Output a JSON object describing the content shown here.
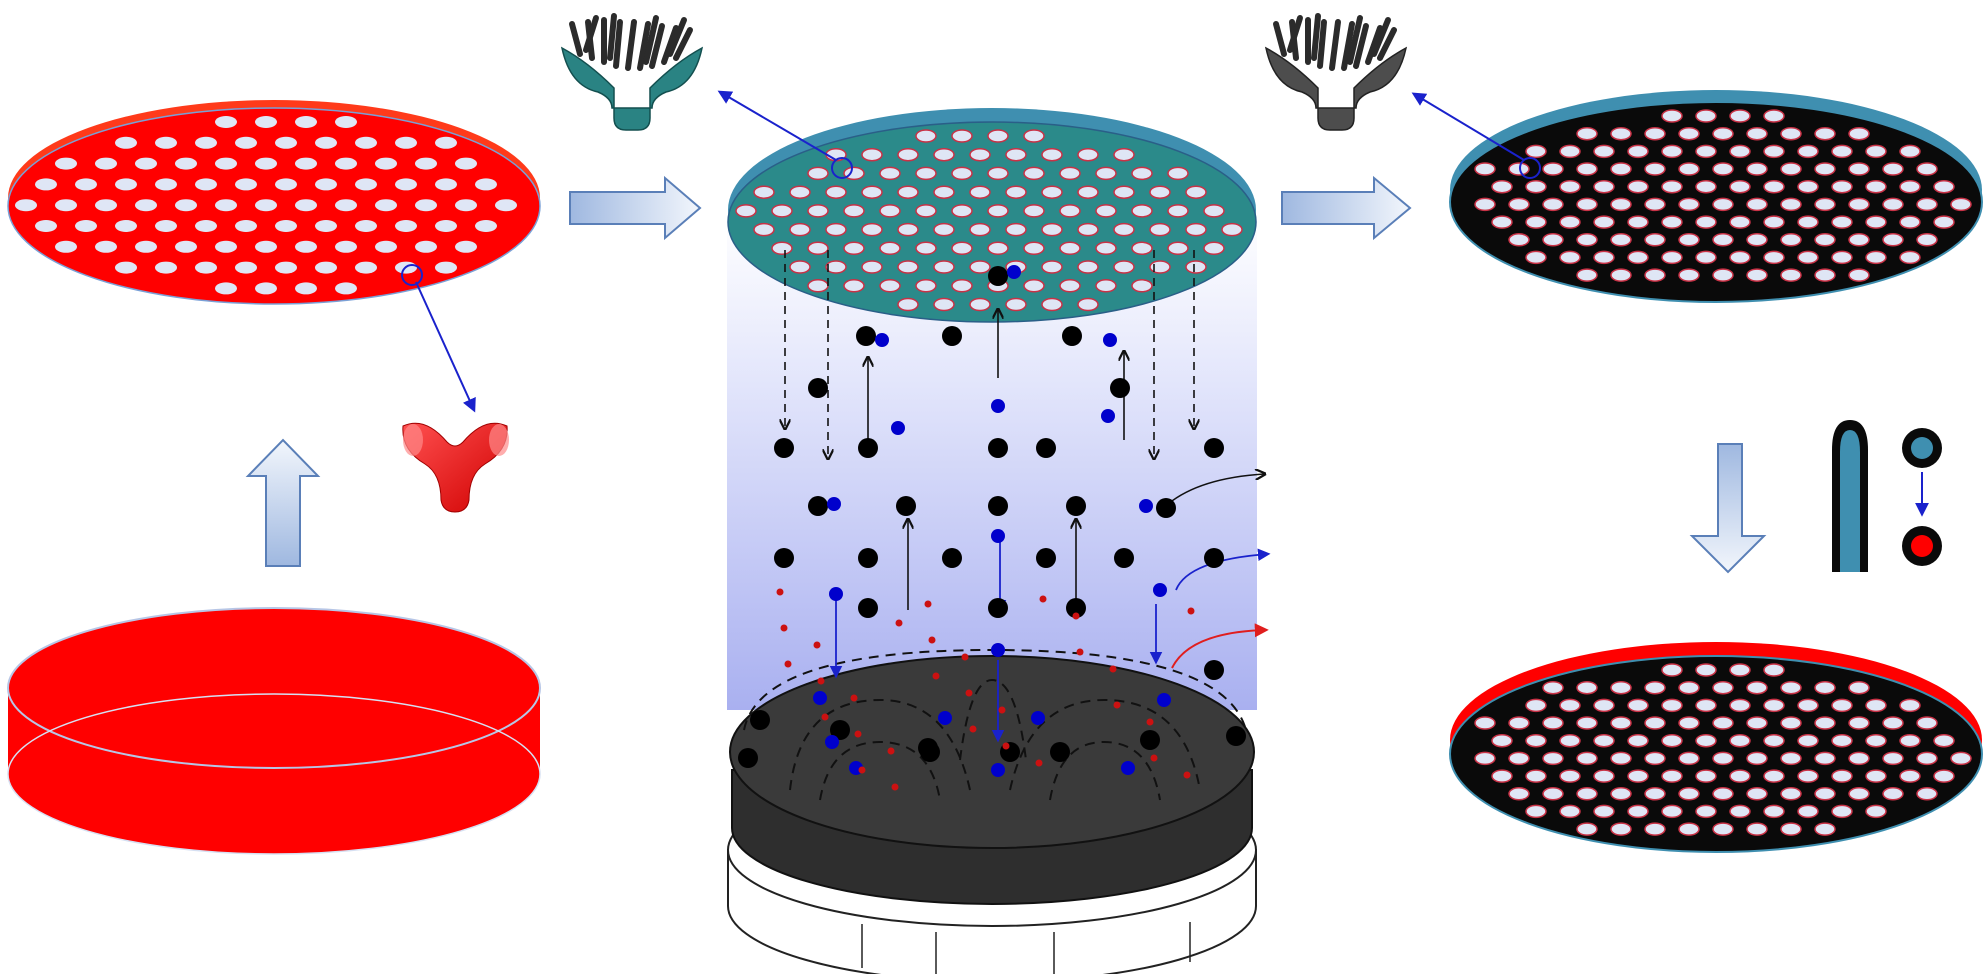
{
  "colors": {
    "red_film": "#ff0000",
    "red_edge": "#ff3a1a",
    "teal": "#2b8a8a",
    "teal_edge": "#3f8fb0",
    "black_film": "#0a0a0a",
    "pore_fill": "#dfe6f5",
    "pore_ring": "#c83246",
    "substrate": "#333333",
    "plasma_column": "#b7bdf2",
    "arrow_fill": "#dbe6f7",
    "arrow_stroke": "#5a7fb8",
    "electron_blue": "#0000cc",
    "species_black": "#000000",
    "species_red": "#cc1111",
    "pointer_blue": "#1a22cc",
    "trajectory_black": "#111111",
    "trajectory_red": "#e01e1e"
  },
  "icons": {
    "red_unit": "tripod-unit-icon",
    "teal_unit": "grafted-tripod-unit-icon",
    "gray_unit": "grafted-tripod-unit-icon",
    "tube_legend": "coated-tube-icon"
  },
  "stages": [
    {
      "name": "bare-red-film"
    },
    {
      "name": "porous-red-film"
    },
    {
      "name": "plasma-treated-teal-film"
    },
    {
      "name": "black-porous-film"
    },
    {
      "name": "red-rimmed-black-film"
    }
  ]
}
